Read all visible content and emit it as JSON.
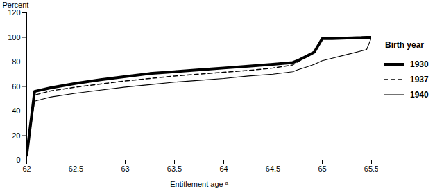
{
  "chart_data": {
    "type": "line",
    "ylabel": "Percent",
    "xlabel": "Entitlement age ᵃ",
    "legend_title": "Birth year",
    "legend": "right",
    "x": [
      62,
      62.08,
      62.25,
      62.5,
      62.75,
      63,
      63.25,
      63.5,
      63.75,
      64,
      64.25,
      64.5,
      64.7,
      64.75,
      64.85,
      64.92,
      65,
      65.1,
      65.25,
      65.4,
      65.45,
      65.5
    ],
    "series": [
      {
        "name": "1930",
        "color": "#000000",
        "line_style": "solid",
        "values": [
          4,
          56,
          59,
          62.5,
          65.5,
          68,
          70.5,
          72,
          73.5,
          75,
          76.5,
          78,
          79.5,
          81,
          85,
          88,
          99,
          99,
          99.5,
          99.8,
          100,
          100
        ]
      },
      {
        "name": "1937",
        "color": "#000000",
        "line_style": "dashed",
        "values": [
          4,
          53,
          56.5,
          59.5,
          62,
          64.5,
          66.5,
          68.5,
          70,
          71.5,
          73,
          75,
          77.5,
          80,
          85,
          88,
          99,
          99,
          99.5,
          99.8,
          100,
          100
        ]
      },
      {
        "name": "1940",
        "color": "#000000",
        "line_style": "solid",
        "values": [
          4,
          48,
          51.5,
          54.5,
          57,
          59.5,
          61.5,
          63.5,
          65,
          66.5,
          68.5,
          70,
          72,
          73.5,
          76,
          78,
          81,
          83,
          86,
          89,
          90,
          100
        ]
      }
    ],
    "xlim": [
      62,
      65.5
    ],
    "xticks": [
      62,
      62.5,
      63,
      63.5,
      64,
      64.5,
      65,
      65.5
    ],
    "ylim": [
      0,
      120
    ],
    "yticks": [
      0,
      20,
      40,
      60,
      80,
      100,
      120
    ],
    "grid": false
  }
}
